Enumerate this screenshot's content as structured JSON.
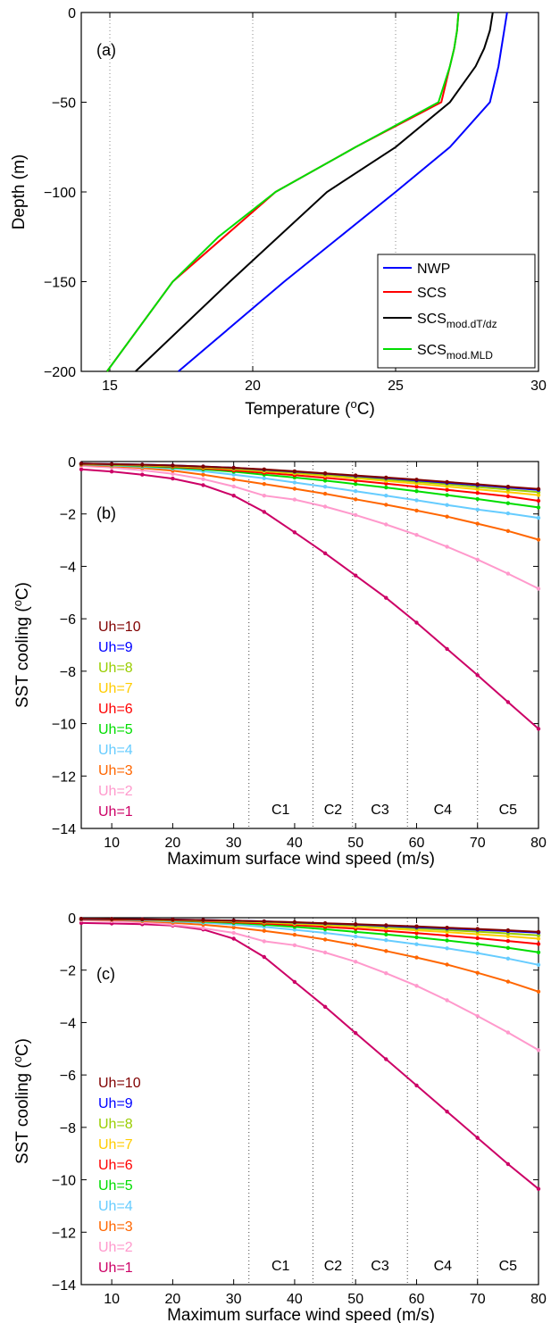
{
  "chart_data": [
    {
      "type": "line",
      "panel": "(a)",
      "xlabel": "Temperature (",
      "xlabel_sup": "o",
      "xlabel_end": "C)",
      "ylabel": "Depth (m)",
      "xlim": [
        14,
        30
      ],
      "ylim": [
        -200,
        0
      ],
      "xticks": [
        15,
        20,
        25,
        30
      ],
      "yticks": [
        0,
        -50,
        -100,
        -150,
        -200
      ],
      "grid": "x-dotted",
      "legend_position": "bottom-right",
      "series": [
        {
          "name": "NWP",
          "sub": "",
          "color": "#0000ff",
          "points": [
            [
              28.9,
              0
            ],
            [
              28.8,
              -10
            ],
            [
              28.7,
              -20
            ],
            [
              28.6,
              -30
            ],
            [
              28.3,
              -50
            ],
            [
              26.9,
              -75
            ],
            [
              25.0,
              -100
            ],
            [
              21.1,
              -150
            ],
            [
              17.4,
              -200
            ]
          ]
        },
        {
          "name": "SCS",
          "sub": "",
          "color": "#ff0000",
          "points": [
            [
              27.2,
              0
            ],
            [
              27.15,
              -10
            ],
            [
              27.05,
              -20
            ],
            [
              26.9,
              -30
            ],
            [
              26.6,
              -50
            ],
            [
              23.6,
              -75
            ],
            [
              20.8,
              -100
            ],
            [
              17.2,
              -150
            ],
            [
              14.9,
              -200
            ]
          ]
        },
        {
          "name": "SCS",
          "sub": "mod.dT/dz",
          "color": "#000000",
          "points": [
            [
              28.4,
              0
            ],
            [
              28.3,
              -10
            ],
            [
              28.1,
              -20
            ],
            [
              27.8,
              -30
            ],
            [
              26.9,
              -50
            ],
            [
              25.0,
              -75
            ],
            [
              22.6,
              -100
            ],
            [
              19.2,
              -150
            ],
            [
              15.9,
              -200
            ]
          ]
        },
        {
          "name": "SCS",
          "sub": "mod.MLD",
          "color": "#00dd00",
          "points": [
            [
              27.2,
              0
            ],
            [
              27.15,
              -10
            ],
            [
              27.05,
              -20
            ],
            [
              26.9,
              -30
            ],
            [
              26.5,
              -50
            ],
            [
              23.6,
              -75
            ],
            [
              20.8,
              -100
            ],
            [
              18.8,
              -125
            ],
            [
              17.2,
              -150
            ],
            [
              14.9,
              -200
            ]
          ]
        }
      ]
    },
    {
      "type": "line",
      "panel": "(b)",
      "xlabel": "Maximum surface wind speed (m/s)",
      "ylabel": "SST cooling (",
      "ylabel_sup": "o",
      "ylabel_end": "C)",
      "xlim": [
        5,
        80
      ],
      "ylim": [
        -14,
        0
      ],
      "xticks": [
        10,
        20,
        30,
        40,
        50,
        60,
        70,
        80
      ],
      "yticks": [
        0,
        -2,
        -4,
        -6,
        -8,
        -10,
        -12,
        -14
      ],
      "category_boundaries": [
        32.5,
        43,
        49.5,
        58.5,
        70
      ],
      "categories": [
        {
          "label": "C1",
          "x": 37.7
        },
        {
          "label": "C2",
          "x": 46.3
        },
        {
          "label": "C3",
          "x": 54
        },
        {
          "label": "C4",
          "x": 64.3
        },
        {
          "label": "C5",
          "x": 75
        }
      ],
      "x": [
        5,
        10,
        15,
        20,
        25,
        30,
        35,
        40,
        45,
        50,
        55,
        60,
        65,
        70,
        75,
        80
      ],
      "series": [
        {
          "name": "Uh=10",
          "color": "#800000",
          "values": [
            -0.08,
            -0.1,
            -0.12,
            -0.15,
            -0.19,
            -0.24,
            -0.3,
            -0.37,
            -0.45,
            -0.53,
            -0.61,
            -0.69,
            -0.78,
            -0.87,
            -0.96,
            -1.05
          ]
        },
        {
          "name": "Uh=9",
          "color": "#0000ff",
          "values": [
            -0.08,
            -0.1,
            -0.12,
            -0.15,
            -0.19,
            -0.24,
            -0.31,
            -0.38,
            -0.46,
            -0.55,
            -0.63,
            -0.72,
            -0.81,
            -0.9,
            -0.99,
            -1.08
          ]
        },
        {
          "name": "Uh=8",
          "color": "#9acd00",
          "values": [
            -0.09,
            -0.11,
            -0.13,
            -0.17,
            -0.21,
            -0.27,
            -0.34,
            -0.42,
            -0.5,
            -0.59,
            -0.68,
            -0.77,
            -0.87,
            -0.97,
            -1.07,
            -1.17
          ]
        },
        {
          "name": "Uh=7",
          "color": "#ffcc00",
          "values": [
            -0.09,
            -0.11,
            -0.14,
            -0.18,
            -0.23,
            -0.29,
            -0.37,
            -0.45,
            -0.54,
            -0.64,
            -0.74,
            -0.84,
            -0.95,
            -1.06,
            -1.17,
            -1.28
          ]
        },
        {
          "name": "Uh=6",
          "color": "#ff0000",
          "values": [
            -0.1,
            -0.12,
            -0.15,
            -0.2,
            -0.26,
            -0.34,
            -0.43,
            -0.52,
            -0.62,
            -0.73,
            -0.84,
            -0.96,
            -1.08,
            -1.2,
            -1.33,
            -1.5
          ]
        },
        {
          "name": "Uh=5",
          "color": "#00dd00",
          "values": [
            -0.1,
            -0.13,
            -0.17,
            -0.23,
            -0.3,
            -0.39,
            -0.5,
            -0.61,
            -0.73,
            -0.86,
            -0.99,
            -1.13,
            -1.28,
            -1.43,
            -1.59,
            -1.75
          ]
        },
        {
          "name": "Uh=4",
          "color": "#66ccff",
          "values": [
            -0.11,
            -0.15,
            -0.2,
            -0.27,
            -0.37,
            -0.5,
            -0.64,
            -0.8,
            -0.96,
            -1.13,
            -1.3,
            -1.48,
            -1.66,
            -1.83,
            -1.98,
            -2.15
          ]
        },
        {
          "name": "Uh=3",
          "color": "#ff6600",
          "values": [
            -0.13,
            -0.18,
            -0.25,
            -0.35,
            -0.5,
            -0.68,
            -0.86,
            -1.04,
            -1.23,
            -1.44,
            -1.65,
            -1.87,
            -2.1,
            -2.37,
            -2.65,
            -2.98
          ]
        },
        {
          "name": "Uh=2",
          "color": "#ff99cc",
          "values": [
            -0.17,
            -0.23,
            -0.33,
            -0.47,
            -0.67,
            -0.95,
            -1.3,
            -1.45,
            -1.72,
            -2.04,
            -2.4,
            -2.8,
            -3.25,
            -3.74,
            -4.28,
            -4.85
          ]
        },
        {
          "name": "Uh=1",
          "color": "#cc0066",
          "values": [
            -0.3,
            -0.38,
            -0.5,
            -0.65,
            -0.9,
            -1.3,
            -1.92,
            -2.7,
            -3.5,
            -4.35,
            -5.2,
            -6.15,
            -7.15,
            -8.15,
            -9.18,
            -10.2
          ]
        }
      ]
    },
    {
      "type": "line",
      "panel": "(c)",
      "xlabel": "Maximum surface wind speed (m/s)",
      "ylabel": "SST cooling (",
      "ylabel_sup": "o",
      "ylabel_end": "C)",
      "xlim": [
        5,
        80
      ],
      "ylim": [
        -14,
        0
      ],
      "xticks": [
        10,
        20,
        30,
        40,
        50,
        60,
        70,
        80
      ],
      "yticks": [
        0,
        -2,
        -4,
        -6,
        -8,
        -10,
        -12,
        -14
      ],
      "category_boundaries": [
        32.5,
        43,
        49.5,
        58.5,
        70
      ],
      "categories": [
        {
          "label": "C1",
          "x": 37.7
        },
        {
          "label": "C2",
          "x": 46.3
        },
        {
          "label": "C3",
          "x": 54
        },
        {
          "label": "C4",
          "x": 64.3
        },
        {
          "label": "C5",
          "x": 75
        }
      ],
      "x": [
        5,
        10,
        15,
        20,
        25,
        30,
        35,
        40,
        45,
        50,
        55,
        60,
        65,
        70,
        75,
        80
      ],
      "series": [
        {
          "name": "Uh=10",
          "color": "#800000",
          "values": [
            -0.04,
            -0.05,
            -0.06,
            -0.07,
            -0.09,
            -0.11,
            -0.14,
            -0.17,
            -0.21,
            -0.25,
            -0.29,
            -0.33,
            -0.38,
            -0.43,
            -0.48,
            -0.54
          ]
        },
        {
          "name": "Uh=9",
          "color": "#0000ff",
          "values": [
            -0.04,
            -0.05,
            -0.06,
            -0.07,
            -0.09,
            -0.11,
            -0.14,
            -0.18,
            -0.22,
            -0.26,
            -0.31,
            -0.36,
            -0.41,
            -0.46,
            -0.51,
            -0.57
          ]
        },
        {
          "name": "Uh=8",
          "color": "#9acd00",
          "values": [
            -0.04,
            -0.05,
            -0.06,
            -0.08,
            -0.1,
            -0.13,
            -0.16,
            -0.2,
            -0.25,
            -0.3,
            -0.35,
            -0.41,
            -0.47,
            -0.53,
            -0.6,
            -0.67
          ]
        },
        {
          "name": "Uh=7",
          "color": "#ffcc00",
          "values": [
            -0.04,
            -0.05,
            -0.07,
            -0.09,
            -0.11,
            -0.14,
            -0.18,
            -0.23,
            -0.28,
            -0.34,
            -0.41,
            -0.48,
            -0.55,
            -0.63,
            -0.71,
            -0.8
          ]
        },
        {
          "name": "Uh=6",
          "color": "#ff0000",
          "values": [
            -0.05,
            -0.06,
            -0.07,
            -0.1,
            -0.13,
            -0.17,
            -0.22,
            -0.28,
            -0.35,
            -0.42,
            -0.5,
            -0.59,
            -0.68,
            -0.78,
            -0.89,
            -1.0
          ]
        },
        {
          "name": "Uh=5",
          "color": "#00dd00",
          "values": [
            -0.05,
            -0.06,
            -0.08,
            -0.11,
            -0.15,
            -0.2,
            -0.27,
            -0.35,
            -0.44,
            -0.54,
            -0.64,
            -0.75,
            -0.87,
            -1.0,
            -1.15,
            -1.32
          ]
        },
        {
          "name": "Uh=4",
          "color": "#66ccff",
          "values": [
            -0.06,
            -0.07,
            -0.1,
            -0.14,
            -0.19,
            -0.26,
            -0.35,
            -0.46,
            -0.58,
            -0.72,
            -0.86,
            -1.01,
            -1.17,
            -1.35,
            -1.56,
            -1.8
          ]
        },
        {
          "name": "Uh=3",
          "color": "#ff6600",
          "values": [
            -0.07,
            -0.09,
            -0.13,
            -0.19,
            -0.27,
            -0.37,
            -0.5,
            -0.65,
            -0.83,
            -1.04,
            -1.27,
            -1.52,
            -1.79,
            -2.1,
            -2.44,
            -2.82
          ]
        },
        {
          "name": "Uh=2",
          "color": "#ff99cc",
          "values": [
            -0.1,
            -0.13,
            -0.18,
            -0.27,
            -0.4,
            -0.58,
            -0.9,
            -1.05,
            -1.33,
            -1.68,
            -2.12,
            -2.6,
            -3.15,
            -3.75,
            -4.38,
            -5.05
          ]
        },
        {
          "name": "Uh=1",
          "color": "#cc0066",
          "values": [
            -0.2,
            -0.22,
            -0.25,
            -0.3,
            -0.45,
            -0.8,
            -1.5,
            -2.45,
            -3.4,
            -4.4,
            -5.4,
            -6.4,
            -7.4,
            -8.4,
            -9.4,
            -10.35
          ]
        }
      ]
    }
  ]
}
